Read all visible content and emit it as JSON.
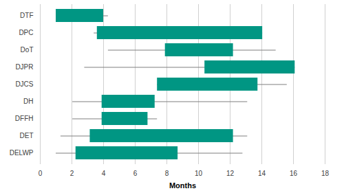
{
  "chart_data": {
    "type": "box",
    "orientation": "horizontal",
    "xlabel": "Months",
    "categories": [
      "DTF",
      "DPC",
      "DoT",
      "DJPR",
      "DJCS",
      "DH",
      "DFFH",
      "DET",
      "DELWP"
    ],
    "min": [
      1.0,
      3.4,
      4.3,
      2.8,
      7.4,
      2.05,
      2.05,
      1.3,
      1.0
    ],
    "q1": [
      1.0,
      3.6,
      7.9,
      10.4,
      7.4,
      3.9,
      3.9,
      3.15,
      2.25
    ],
    "q3": [
      4.0,
      14.05,
      12.2,
      16.1,
      13.75,
      7.25,
      6.8,
      12.2,
      8.7
    ],
    "max": [
      4.3,
      14.05,
      14.9,
      16.1,
      15.6,
      13.1,
      7.4,
      13.1,
      12.8
    ],
    "color": "#009683",
    "xlim": [
      0,
      18
    ],
    "xticks": [
      0,
      2,
      4,
      6,
      8,
      10,
      12,
      14,
      16,
      18
    ],
    "grid": true
  }
}
